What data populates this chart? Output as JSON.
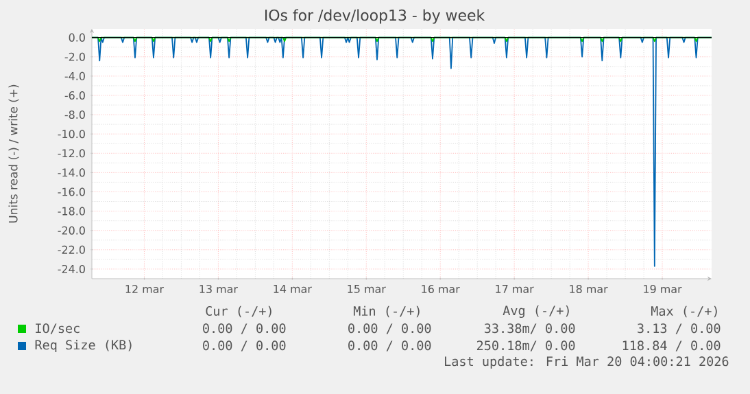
{
  "chart_data": {
    "type": "line",
    "title": "IOs for /dev/loop13 - by week",
    "ylabel": "Units read (-) / write (+)",
    "xlim": [
      "2026-03-11T19:00",
      "2026-03-20T04:00"
    ],
    "ylim": [
      -25,
      0.9
    ],
    "xticks": [
      {
        "value": "2026-03-12T12:00",
        "label": "12 mar"
      },
      {
        "value": "2026-03-13T12:00",
        "label": "13 mar"
      },
      {
        "value": "2026-03-14T12:00",
        "label": "14 mar"
      },
      {
        "value": "2026-03-15T12:00",
        "label": "15 mar"
      },
      {
        "value": "2026-03-16T12:00",
        "label": "16 mar"
      },
      {
        "value": "2026-03-17T12:00",
        "label": "17 mar"
      },
      {
        "value": "2026-03-18T12:00",
        "label": "18 mar"
      },
      {
        "value": "2026-03-19T12:00",
        "label": "19 mar"
      }
    ],
    "yticks": [
      {
        "value": 0,
        "label": "0.0"
      },
      {
        "value": -2,
        "label": "-2.0"
      },
      {
        "value": -4,
        "label": "-4.0"
      },
      {
        "value": -6,
        "label": "-6.0"
      },
      {
        "value": -8,
        "label": "-8.0"
      },
      {
        "value": -10,
        "label": "-10.0"
      },
      {
        "value": -12,
        "label": "-12.0"
      },
      {
        "value": -14,
        "label": "-14.0"
      },
      {
        "value": -16,
        "label": "-16.0"
      },
      {
        "value": -18,
        "label": "-18.0"
      },
      {
        "value": -20,
        "label": "-20.0"
      },
      {
        "value": -22,
        "label": "-22.0"
      },
      {
        "value": -24,
        "label": "-24.0"
      }
    ],
    "grid": true,
    "legend": "bottom",
    "ref_lines": [
      {
        "axis": "y",
        "value": 0,
        "color": "#000000"
      }
    ],
    "series": [
      {
        "name": "Req Size (KB)",
        "color": "#0066b3",
        "x": [
          "2026-03-11T19:00",
          "2026-03-11T21:00",
          "2026-03-11T21:30",
          "2026-03-11T22:00",
          "2026-03-11T22:30",
          "2026-03-11T23:00",
          "2026-03-12T04:30",
          "2026-03-12T05:00",
          "2026-03-12T05:30",
          "2026-03-12T08:30",
          "2026-03-12T09:00",
          "2026-03-12T09:30",
          "2026-03-12T14:30",
          "2026-03-12T15:00",
          "2026-03-12T15:30",
          "2026-03-12T21:00",
          "2026-03-12T21:30",
          "2026-03-12T22:00",
          "2026-03-13T03:00",
          "2026-03-13T03:30",
          "2026-03-13T04:00",
          "2026-03-13T04:30",
          "2026-03-13T05:00",
          "2026-03-13T05:30",
          "2026-03-13T09:00",
          "2026-03-13T09:30",
          "2026-03-13T10:00",
          "2026-03-13T12:00",
          "2026-03-13T12:30",
          "2026-03-13T13:00",
          "2026-03-13T15:00",
          "2026-03-13T15:30",
          "2026-03-13T16:00",
          "2026-03-13T21:00",
          "2026-03-13T21:30",
          "2026-03-13T22:00",
          "2026-03-14T03:30",
          "2026-03-14T04:00",
          "2026-03-14T04:30",
          "2026-03-14T06:00",
          "2026-03-14T06:30",
          "2026-03-14T07:00",
          "2026-03-14T07:30",
          "2026-03-14T08:00",
          "2026-03-14T08:30",
          "2026-03-14T09:00",
          "2026-03-14T09:30",
          "2026-03-14T15:00",
          "2026-03-14T15:30",
          "2026-03-14T16:00",
          "2026-03-14T21:00",
          "2026-03-14T21:30",
          "2026-03-14T22:00",
          "2026-03-15T05:00",
          "2026-03-15T05:30",
          "2026-03-15T06:00",
          "2026-03-15T06:30",
          "2026-03-15T07:00",
          "2026-03-15T09:00",
          "2026-03-15T09:30",
          "2026-03-15T10:00",
          "2026-03-15T15:00",
          "2026-03-15T15:30",
          "2026-03-15T16:00",
          "2026-03-15T21:30",
          "2026-03-15T22:00",
          "2026-03-15T22:30",
          "2026-03-16T02:30",
          "2026-03-16T03:00",
          "2026-03-16T03:30",
          "2026-03-16T09:00",
          "2026-03-16T09:30",
          "2026-03-16T10:00",
          "2026-03-16T15:00",
          "2026-03-16T15:30",
          "2026-03-16T16:00",
          "2026-03-16T21:30",
          "2026-03-16T22:00",
          "2026-03-16T22:30",
          "2026-03-17T05:00",
          "2026-03-17T05:30",
          "2026-03-17T06:00",
          "2026-03-17T09:00",
          "2026-03-17T09:30",
          "2026-03-17T10:00",
          "2026-03-17T15:30",
          "2026-03-17T16:00",
          "2026-03-17T16:30",
          "2026-03-17T22:00",
          "2026-03-17T22:30",
          "2026-03-17T23:00",
          "2026-03-18T09:30",
          "2026-03-18T10:00",
          "2026-03-18T10:30",
          "2026-03-18T16:00",
          "2026-03-18T16:30",
          "2026-03-18T17:00",
          "2026-03-18T22:00",
          "2026-03-18T22:30",
          "2026-03-18T23:00",
          "2026-03-19T05:00",
          "2026-03-19T05:30",
          "2026-03-19T06:00",
          "2026-03-19T09:00",
          "2026-03-19T09:30",
          "2026-03-19T10:00",
          "2026-03-19T13:30",
          "2026-03-19T14:00",
          "2026-03-19T14:30",
          "2026-03-19T18:30",
          "2026-03-19T19:00",
          "2026-03-19T19:30",
          "2026-03-19T22:30",
          "2026-03-19T23:00",
          "2026-03-19T23:30",
          "2026-03-20T04:00"
        ],
        "values": [
          0,
          0,
          -2.4,
          0,
          -0.5,
          0,
          0,
          -0.5,
          0,
          0,
          -2.1,
          0,
          0,
          -2.1,
          0,
          0,
          -2.1,
          0,
          0,
          -0.5,
          0,
          0,
          -0.5,
          0,
          0,
          -2.1,
          0,
          0,
          -0.5,
          0,
          0,
          -2.1,
          0,
          0,
          -2.1,
          0,
          0,
          -0.5,
          0,
          0,
          -0.5,
          0,
          0,
          -0.5,
          0,
          -2.1,
          0,
          0,
          -2.1,
          0,
          0,
          -2.1,
          0,
          0,
          -0.5,
          0,
          -0.5,
          0,
          0,
          -2.1,
          0,
          0,
          -2.3,
          0,
          0,
          -2.1,
          0,
          0,
          -0.5,
          0,
          0,
          -2.2,
          0,
          0,
          -3.2,
          0,
          0,
          -2.1,
          0,
          0,
          -0.6,
          0,
          0,
          -2.1,
          0,
          0,
          -2.1,
          0,
          0,
          -2.1,
          0,
          0,
          -2.0,
          0,
          0,
          -2.4,
          0,
          0,
          -2.1,
          0,
          0,
          -0.5,
          0,
          0,
          -23.7,
          0,
          0,
          -2.1,
          0,
          0,
          -0.5,
          0,
          0,
          -2.1,
          0,
          0
        ]
      },
      {
        "name": "IO/sec",
        "color": "#00cc00",
        "x": [
          "2026-03-11T19:00",
          "2026-03-11T21:00",
          "2026-03-11T21:30",
          "2026-03-11T22:00",
          "2026-03-12T08:30",
          "2026-03-12T09:00",
          "2026-03-12T09:30",
          "2026-03-12T14:30",
          "2026-03-12T15:00",
          "2026-03-12T15:30",
          "2026-03-13T09:00",
          "2026-03-13T09:30",
          "2026-03-13T10:00",
          "2026-03-13T15:00",
          "2026-03-13T15:30",
          "2026-03-13T16:00",
          "2026-03-14T09:00",
          "2026-03-14T09:30",
          "2026-03-14T10:00",
          "2026-03-15T15:00",
          "2026-03-15T15:30",
          "2026-03-15T16:00",
          "2026-03-16T09:00",
          "2026-03-16T09:30",
          "2026-03-16T10:00",
          "2026-03-17T09:00",
          "2026-03-17T09:30",
          "2026-03-17T10:00",
          "2026-03-18T09:30",
          "2026-03-18T10:00",
          "2026-03-18T10:30",
          "2026-03-18T16:00",
          "2026-03-18T16:30",
          "2026-03-18T17:00",
          "2026-03-18T22:00",
          "2026-03-18T22:30",
          "2026-03-18T23:00",
          "2026-03-19T09:00",
          "2026-03-19T09:30",
          "2026-03-19T10:00",
          "2026-03-19T22:30",
          "2026-03-19T23:00",
          "2026-03-19T23:30",
          "2026-03-20T04:00"
        ],
        "values": [
          0,
          0,
          -0.4,
          0,
          0,
          -0.4,
          0,
          0,
          -0.4,
          0,
          0,
          -0.4,
          0,
          0,
          -0.4,
          0,
          0,
          -0.4,
          0,
          0,
          -0.4,
          0,
          0,
          -0.4,
          0,
          0,
          -0.4,
          0,
          0,
          -0.4,
          0,
          0,
          -0.4,
          0,
          0,
          -0.4,
          0,
          0,
          -0.4,
          0,
          0,
          -0.4,
          0,
          0
        ]
      }
    ],
    "annotations": [
      "Cur (-/+)",
      "Min (-/+)",
      "Avg (-/+)",
      "Max (-/+)",
      "0.00 / 0.00",
      "0.00 / 0.00",
      "33.38m/ 0.00",
      "3.13 / 0.00",
      "0.00 / 0.00",
      "0.00 / 0.00",
      "250.18m/ 0.00",
      "118.84 / 0.00",
      "Last update: Fri Mar 20 04:00:21 2026"
    ]
  }
}
